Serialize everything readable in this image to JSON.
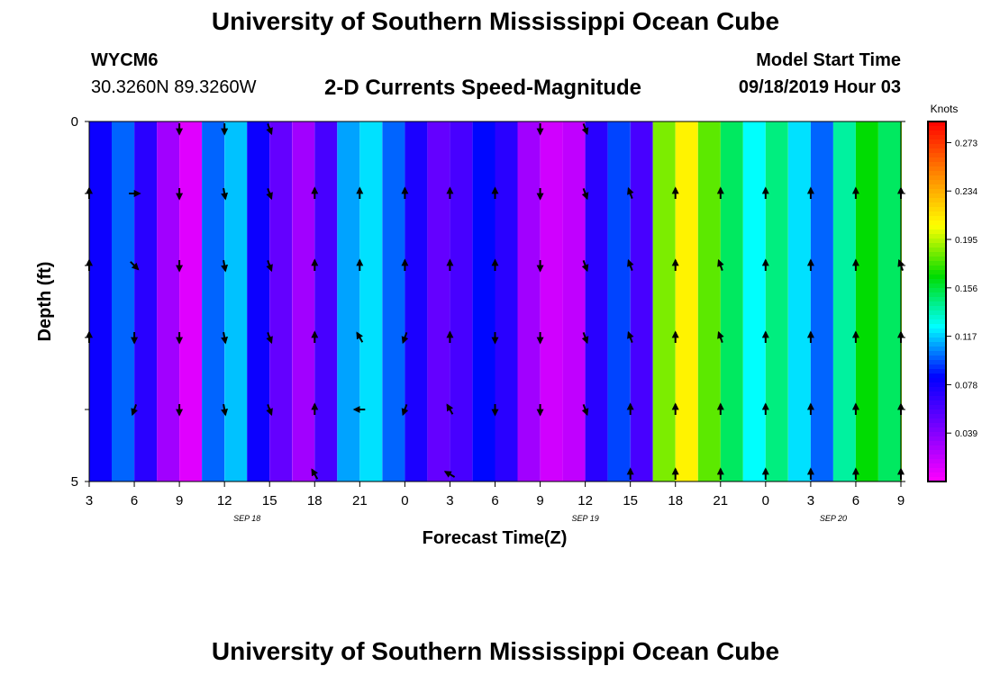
{
  "header": {
    "title": "University of Southern Mississippi Ocean Cube",
    "footer_title": "University of Southern Mississippi Ocean Cube",
    "station_id": "WYCM6",
    "station_coords": "30.3260N 89.3260W",
    "chart_title": "2-D Currents Speed-Magnitude",
    "model_label": "Model Start Time",
    "model_time": "09/18/2019 Hour 03"
  },
  "chart_data": {
    "type": "heatmap",
    "title": "2-D Currents Speed-Magnitude",
    "xlabel": "Forecast Time(Z)",
    "ylabel": "Depth (ft)",
    "x_tick_labels": [
      "3",
      "6",
      "9",
      "12",
      "15",
      "18",
      "21",
      "0",
      "3",
      "6",
      "9",
      "12",
      "15",
      "18",
      "21",
      "0",
      "3",
      "6",
      "9"
    ],
    "date_labels": [
      {
        "text": "SEP 18",
        "at_tick": 3.5
      },
      {
        "text": "SEP 19",
        "at_tick": 11
      },
      {
        "text": "SEP 20",
        "at_tick": 16.5
      }
    ],
    "y_tick_labels": [
      {
        "text": "0",
        "depth": 0
      },
      {
        "text": "5",
        "depth": 5
      }
    ],
    "ylim": [
      0,
      5
    ],
    "colorbar": {
      "label": "Knots",
      "min": 0.0,
      "max": 0.29,
      "ticks": [
        "0.273",
        "0.234",
        "0.195",
        "0.156",
        "0.117",
        "0.078",
        "0.039"
      ]
    },
    "speed_segments": [
      {
        "t": 0.0,
        "v": 0.08
      },
      {
        "t": 0.5,
        "v": 0.1
      },
      {
        "t": 1.0,
        "v": 0.07
      },
      {
        "t": 1.5,
        "v": 0.03
      },
      {
        "t": 2.0,
        "v": 0.01
      },
      {
        "t": 2.5,
        "v": 0.1
      },
      {
        "t": 3.0,
        "v": 0.115
      },
      {
        "t": 3.5,
        "v": 0.08
      },
      {
        "t": 4.0,
        "v": 0.05
      },
      {
        "t": 4.5,
        "v": 0.03
      },
      {
        "t": 5.0,
        "v": 0.06
      },
      {
        "t": 5.5,
        "v": 0.11
      },
      {
        "t": 6.0,
        "v": 0.12
      },
      {
        "t": 6.5,
        "v": 0.1
      },
      {
        "t": 7.0,
        "v": 0.075
      },
      {
        "t": 7.5,
        "v": 0.05
      },
      {
        "t": 8.0,
        "v": 0.06
      },
      {
        "t": 8.5,
        "v": 0.085
      },
      {
        "t": 9.0,
        "v": 0.07
      },
      {
        "t": 9.5,
        "v": 0.03
      },
      {
        "t": 10.0,
        "v": 0.015
      },
      {
        "t": 10.5,
        "v": 0.02
      },
      {
        "t": 11.0,
        "v": 0.07
      },
      {
        "t": 11.5,
        "v": 0.095
      },
      {
        "t": 12.0,
        "v": 0.06
      },
      {
        "t": 12.5,
        "v": 0.185
      },
      {
        "t": 13.0,
        "v": 0.21
      },
      {
        "t": 13.5,
        "v": 0.18
      },
      {
        "t": 14.0,
        "v": 0.15
      },
      {
        "t": 14.5,
        "v": 0.125
      },
      {
        "t": 15.0,
        "v": 0.145
      },
      {
        "t": 15.5,
        "v": 0.12
      },
      {
        "t": 16.0,
        "v": 0.1
      },
      {
        "t": 16.5,
        "v": 0.14
      },
      {
        "t": 17.0,
        "v": 0.165
      },
      {
        "t": 17.5,
        "v": 0.15
      },
      {
        "t": 18.0,
        "v": 0.19
      }
    ],
    "current_arrows": [
      {
        "t": 2,
        "depth": 0.1,
        "dir_deg": 180
      },
      {
        "t": 3,
        "depth": 0.1,
        "dir_deg": 180
      },
      {
        "t": 4,
        "depth": 0.1,
        "dir_deg": 160
      },
      {
        "t": 10,
        "depth": 0.1,
        "dir_deg": 180
      },
      {
        "t": 11,
        "depth": 0.1,
        "dir_deg": 160
      },
      {
        "t": 0,
        "depth": 1,
        "dir_deg": 0
      },
      {
        "t": 1,
        "depth": 1,
        "dir_deg": 90
      },
      {
        "t": 2,
        "depth": 1,
        "dir_deg": 180
      },
      {
        "t": 3,
        "depth": 1,
        "dir_deg": 170
      },
      {
        "t": 4,
        "depth": 1,
        "dir_deg": 160
      },
      {
        "t": 5,
        "depth": 1,
        "dir_deg": 0
      },
      {
        "t": 6,
        "depth": 1,
        "dir_deg": 0
      },
      {
        "t": 7,
        "depth": 1,
        "dir_deg": 0
      },
      {
        "t": 8,
        "depth": 1,
        "dir_deg": 0
      },
      {
        "t": 9,
        "depth": 1,
        "dir_deg": 0
      },
      {
        "t": 10,
        "depth": 1,
        "dir_deg": 180
      },
      {
        "t": 11,
        "depth": 1,
        "dir_deg": 160
      },
      {
        "t": 12,
        "depth": 1,
        "dir_deg": 340
      },
      {
        "t": 13,
        "depth": 1,
        "dir_deg": 0
      },
      {
        "t": 14,
        "depth": 1,
        "dir_deg": 0
      },
      {
        "t": 15,
        "depth": 1,
        "dir_deg": 0
      },
      {
        "t": 16,
        "depth": 1,
        "dir_deg": 0
      },
      {
        "t": 17,
        "depth": 1,
        "dir_deg": 0
      },
      {
        "t": 18,
        "depth": 1,
        "dir_deg": 0
      },
      {
        "t": 0,
        "depth": 2,
        "dir_deg": 0
      },
      {
        "t": 1,
        "depth": 2,
        "dir_deg": 135
      },
      {
        "t": 2,
        "depth": 2,
        "dir_deg": 180
      },
      {
        "t": 3,
        "depth": 2,
        "dir_deg": 170
      },
      {
        "t": 4,
        "depth": 2,
        "dir_deg": 160
      },
      {
        "t": 5,
        "depth": 2,
        "dir_deg": 0
      },
      {
        "t": 6,
        "depth": 2,
        "dir_deg": 0
      },
      {
        "t": 7,
        "depth": 2,
        "dir_deg": 0
      },
      {
        "t": 8,
        "depth": 2,
        "dir_deg": 0
      },
      {
        "t": 9,
        "depth": 2,
        "dir_deg": 0
      },
      {
        "t": 10,
        "depth": 2,
        "dir_deg": 180
      },
      {
        "t": 11,
        "depth": 2,
        "dir_deg": 160
      },
      {
        "t": 12,
        "depth": 2,
        "dir_deg": 340
      },
      {
        "t": 13,
        "depth": 2,
        "dir_deg": 0
      },
      {
        "t": 14,
        "depth": 2,
        "dir_deg": 340
      },
      {
        "t": 15,
        "depth": 2,
        "dir_deg": 0
      },
      {
        "t": 16,
        "depth": 2,
        "dir_deg": 0
      },
      {
        "t": 17,
        "depth": 2,
        "dir_deg": 0
      },
      {
        "t": 18,
        "depth": 2,
        "dir_deg": 340
      },
      {
        "t": 0,
        "depth": 3,
        "dir_deg": 0
      },
      {
        "t": 1,
        "depth": 3,
        "dir_deg": 180
      },
      {
        "t": 2,
        "depth": 3,
        "dir_deg": 180
      },
      {
        "t": 3,
        "depth": 3,
        "dir_deg": 170
      },
      {
        "t": 4,
        "depth": 3,
        "dir_deg": 160
      },
      {
        "t": 5,
        "depth": 3,
        "dir_deg": 0
      },
      {
        "t": 6,
        "depth": 3,
        "dir_deg": 330
      },
      {
        "t": 7,
        "depth": 3,
        "dir_deg": 200
      },
      {
        "t": 8,
        "depth": 3,
        "dir_deg": 0
      },
      {
        "t": 9,
        "depth": 3,
        "dir_deg": 180
      },
      {
        "t": 10,
        "depth": 3,
        "dir_deg": 180
      },
      {
        "t": 11,
        "depth": 3,
        "dir_deg": 160
      },
      {
        "t": 12,
        "depth": 3,
        "dir_deg": 340
      },
      {
        "t": 13,
        "depth": 3,
        "dir_deg": 0
      },
      {
        "t": 14,
        "depth": 3,
        "dir_deg": 340
      },
      {
        "t": 15,
        "depth": 3,
        "dir_deg": 0
      },
      {
        "t": 16,
        "depth": 3,
        "dir_deg": 0
      },
      {
        "t": 17,
        "depth": 3,
        "dir_deg": 0
      },
      {
        "t": 18,
        "depth": 3,
        "dir_deg": 0
      },
      {
        "t": 1,
        "depth": 4,
        "dir_deg": 200
      },
      {
        "t": 2,
        "depth": 4,
        "dir_deg": 180
      },
      {
        "t": 3,
        "depth": 4,
        "dir_deg": 170
      },
      {
        "t": 4,
        "depth": 4,
        "dir_deg": 160
      },
      {
        "t": 5,
        "depth": 4,
        "dir_deg": 0
      },
      {
        "t": 6,
        "depth": 4,
        "dir_deg": 270
      },
      {
        "t": 7,
        "depth": 4,
        "dir_deg": 200
      },
      {
        "t": 8,
        "depth": 4,
        "dir_deg": 330
      },
      {
        "t": 9,
        "depth": 4,
        "dir_deg": 180
      },
      {
        "t": 10,
        "depth": 4,
        "dir_deg": 180
      },
      {
        "t": 11,
        "depth": 4,
        "dir_deg": 160
      },
      {
        "t": 12,
        "depth": 4,
        "dir_deg": 0
      },
      {
        "t": 13,
        "depth": 4,
        "dir_deg": 0
      },
      {
        "t": 14,
        "depth": 4,
        "dir_deg": 0
      },
      {
        "t": 15,
        "depth": 4,
        "dir_deg": 0
      },
      {
        "t": 16,
        "depth": 4,
        "dir_deg": 0
      },
      {
        "t": 17,
        "depth": 4,
        "dir_deg": 0
      },
      {
        "t": 18,
        "depth": 4,
        "dir_deg": 0
      },
      {
        "t": 5,
        "depth": 4.9,
        "dir_deg": 330
      },
      {
        "t": 8,
        "depth": 4.9,
        "dir_deg": 300
      },
      {
        "t": 12,
        "depth": 4.9,
        "dir_deg": 0
      },
      {
        "t": 13,
        "depth": 4.9,
        "dir_deg": 0
      },
      {
        "t": 14,
        "depth": 4.9,
        "dir_deg": 0
      },
      {
        "t": 15,
        "depth": 4.9,
        "dir_deg": 0
      },
      {
        "t": 16,
        "depth": 4.9,
        "dir_deg": 0
      },
      {
        "t": 17,
        "depth": 4.9,
        "dir_deg": 0
      },
      {
        "t": 18,
        "depth": 4.9,
        "dir_deg": 0
      }
    ]
  }
}
